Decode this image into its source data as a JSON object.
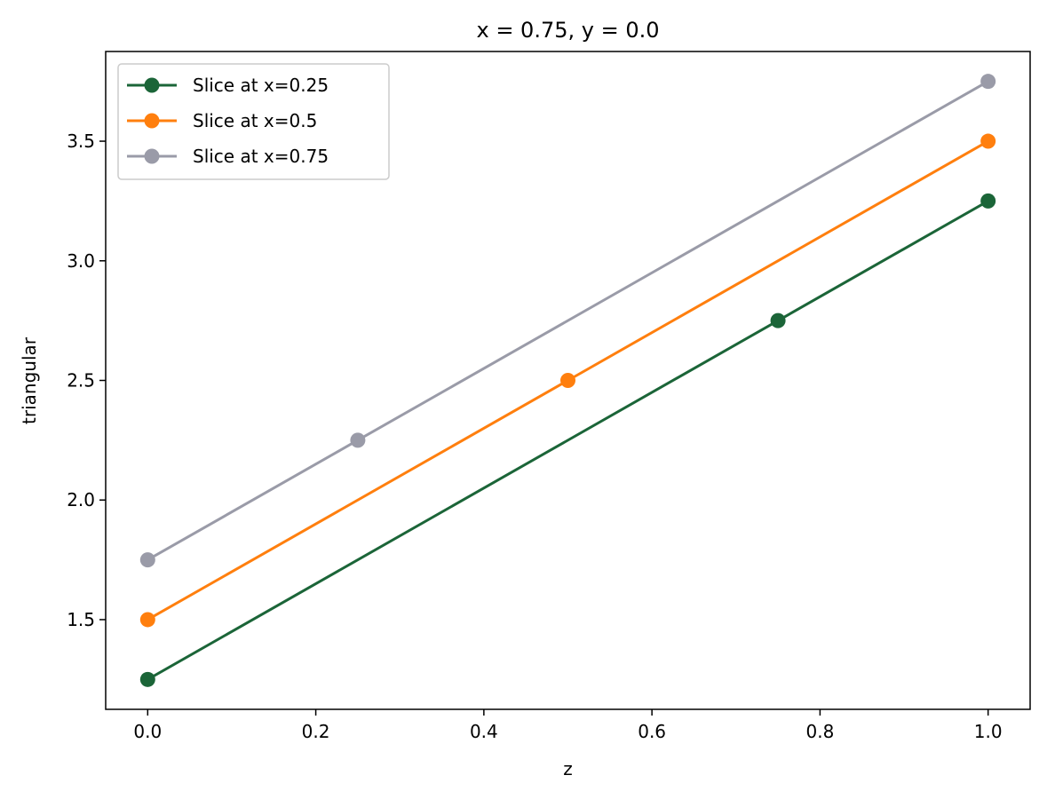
{
  "chart_data": {
    "type": "line",
    "title": "x = 0.75, y = 0.0",
    "xlabel": "z",
    "ylabel": "triangular",
    "xlim": [
      -0.05,
      1.05
    ],
    "ylim": [
      1.125,
      3.875
    ],
    "x_ticks": [
      0.0,
      0.2,
      0.4,
      0.6,
      0.8,
      1.0
    ],
    "x_tick_labels": [
      "0.0",
      "0.2",
      "0.4",
      "0.6",
      "0.8",
      "1.0"
    ],
    "y_ticks": [
      1.5,
      2.0,
      2.5,
      3.0,
      3.5
    ],
    "y_tick_labels": [
      "1.5",
      "2.0",
      "2.5",
      "3.0",
      "3.5"
    ],
    "grid": false,
    "legend_position": "upper-left",
    "series": [
      {
        "name": "Slice at x=0.25",
        "color": "#1b6538",
        "x": [
          0.0,
          0.75,
          1.0
        ],
        "y": [
          1.25,
          2.75,
          3.25
        ]
      },
      {
        "name": "Slice at x=0.5",
        "color": "#ff7f0e",
        "x": [
          0.0,
          0.5,
          1.0
        ],
        "y": [
          1.5,
          2.5,
          3.5
        ]
      },
      {
        "name": "Slice at x=0.75",
        "color": "#9a9ba8",
        "x": [
          0.0,
          0.25,
          1.0
        ],
        "y": [
          1.75,
          2.25,
          3.75
        ]
      }
    ]
  }
}
